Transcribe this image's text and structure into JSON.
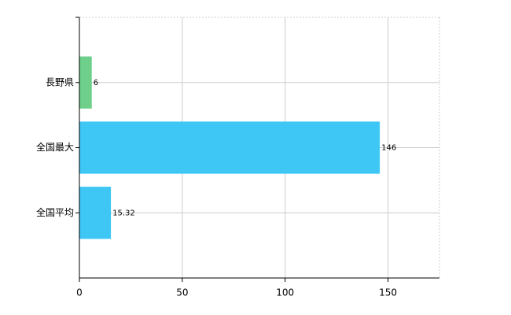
{
  "chart_data": {
    "type": "bar",
    "orientation": "horizontal",
    "categories": [
      "長野県",
      "全国最大",
      "全国平均"
    ],
    "values": [
      6,
      146,
      15.32
    ],
    "colors": [
      "#6dcf8a",
      "#3ec6f5",
      "#3ec6f5"
    ],
    "xlim": [
      0,
      175
    ],
    "xticks": [
      0,
      50,
      100,
      150
    ],
    "grid": true
  }
}
